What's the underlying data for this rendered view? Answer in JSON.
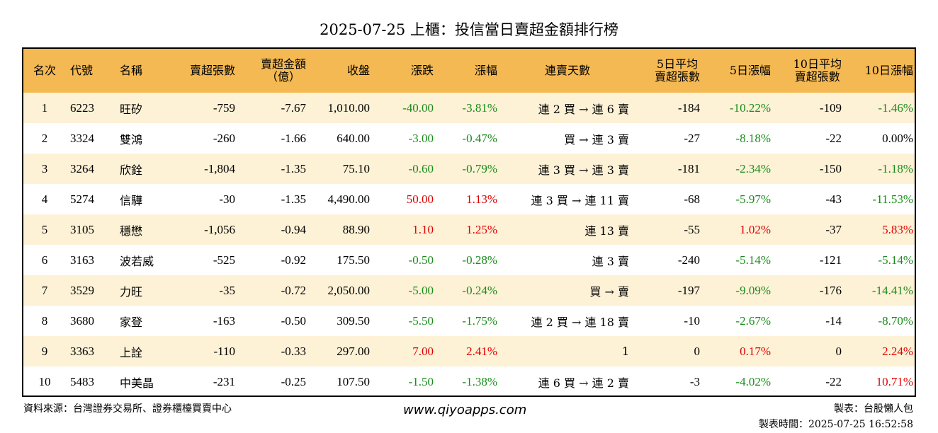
{
  "title": "2025-07-25 上櫃：投信當日賣超金額排行榜",
  "headers": {
    "rank": "名次",
    "code": "代號",
    "name": "名稱",
    "sell_lots": "賣超張數",
    "sell_amount_1": "賣超金額",
    "sell_amount_2": "（億）",
    "close": "收盤",
    "change": "漲跌",
    "change_pct": "漲幅",
    "streak": "連賣天數",
    "avg5_1": "5日平均",
    "avg5_2": "賣超張數",
    "pct5": "5日漲幅",
    "avg10_1": "10日平均",
    "avg10_2": "賣超張數",
    "pct10": "10日漲幅"
  },
  "rows": [
    {
      "rank": "1",
      "code": "6223",
      "name": "旺矽",
      "sell_lots": "-759",
      "amount": "-7.67",
      "close": "1,010.00",
      "change": "-40.00",
      "change_pct": "-3.81%",
      "streak": "連 2 買 → 連 6 賣",
      "avg5": "-184",
      "pct5": "-10.22%",
      "avg10": "-109",
      "pct10": "-1.46%"
    },
    {
      "rank": "2",
      "code": "3324",
      "name": "雙鴻",
      "sell_lots": "-260",
      "amount": "-1.66",
      "close": "640.00",
      "change": "-3.00",
      "change_pct": "-0.47%",
      "streak": "買 → 連 3 賣",
      "avg5": "-27",
      "pct5": "-8.18%",
      "avg10": "-22",
      "pct10": "0.00%"
    },
    {
      "rank": "3",
      "code": "3264",
      "name": "欣銓",
      "sell_lots": "-1,804",
      "amount": "-1.35",
      "close": "75.10",
      "change": "-0.60",
      "change_pct": "-0.79%",
      "streak": "連 3 買 → 連 3 賣",
      "avg5": "-181",
      "pct5": "-2.34%",
      "avg10": "-150",
      "pct10": "-1.18%"
    },
    {
      "rank": "4",
      "code": "5274",
      "name": "信驊",
      "sell_lots": "-30",
      "amount": "-1.35",
      "close": "4,490.00",
      "change": "50.00",
      "change_pct": "1.13%",
      "streak": "連 3 買 → 連 11 賣",
      "avg5": "-68",
      "pct5": "-5.97%",
      "avg10": "-43",
      "pct10": "-11.53%"
    },
    {
      "rank": "5",
      "code": "3105",
      "name": "穩懋",
      "sell_lots": "-1,056",
      "amount": "-0.94",
      "close": "88.90",
      "change": "1.10",
      "change_pct": "1.25%",
      "streak": "連 13 賣",
      "avg5": "-55",
      "pct5": "1.02%",
      "avg10": "-37",
      "pct10": "5.83%"
    },
    {
      "rank": "6",
      "code": "3163",
      "name": "波若威",
      "sell_lots": "-525",
      "amount": "-0.92",
      "close": "175.50",
      "change": "-0.50",
      "change_pct": "-0.28%",
      "streak": "連 3 賣",
      "avg5": "-240",
      "pct5": "-5.14%",
      "avg10": "-121",
      "pct10": "-5.14%"
    },
    {
      "rank": "7",
      "code": "3529",
      "name": "力旺",
      "sell_lots": "-35",
      "amount": "-0.72",
      "close": "2,050.00",
      "change": "-5.00",
      "change_pct": "-0.24%",
      "streak": "買 → 賣",
      "avg5": "-197",
      "pct5": "-9.09%",
      "avg10": "-176",
      "pct10": "-14.41%"
    },
    {
      "rank": "8",
      "code": "3680",
      "name": "家登",
      "sell_lots": "-163",
      "amount": "-0.50",
      "close": "309.50",
      "change": "-5.50",
      "change_pct": "-1.75%",
      "streak": "連 2 買 → 連 18 賣",
      "avg5": "-10",
      "pct5": "-2.67%",
      "avg10": "-14",
      "pct10": "-8.70%"
    },
    {
      "rank": "9",
      "code": "3363",
      "name": "上詮",
      "sell_lots": "-110",
      "amount": "-0.33",
      "close": "297.00",
      "change": "7.00",
      "change_pct": "2.41%",
      "streak": "1",
      "avg5": "0",
      "pct5": "0.17%",
      "avg10": "0",
      "pct10": "2.24%"
    },
    {
      "rank": "10",
      "code": "5483",
      "name": "中美晶",
      "sell_lots": "-231",
      "amount": "-0.25",
      "close": "107.50",
      "change": "-1.50",
      "change_pct": "-1.38%",
      "streak": "連 6 買 → 連 2 賣",
      "avg5": "-3",
      "pct5": "-4.02%",
      "avg10": "-22",
      "pct10": "10.71%"
    }
  ],
  "colors": {
    "header_bg": "#f5b953",
    "row_alt_bg": "#fdf1d6",
    "negative": "#1a8c1a",
    "positive": "#e00000"
  },
  "footer": {
    "source": "資料來源：台灣證券交易所、證券櫃檯買賣中心",
    "website": "www.qiyoapps.com",
    "maker": "製表：台股懶人包",
    "made_time": "製表時間：2025-07-25 16:52:58"
  }
}
